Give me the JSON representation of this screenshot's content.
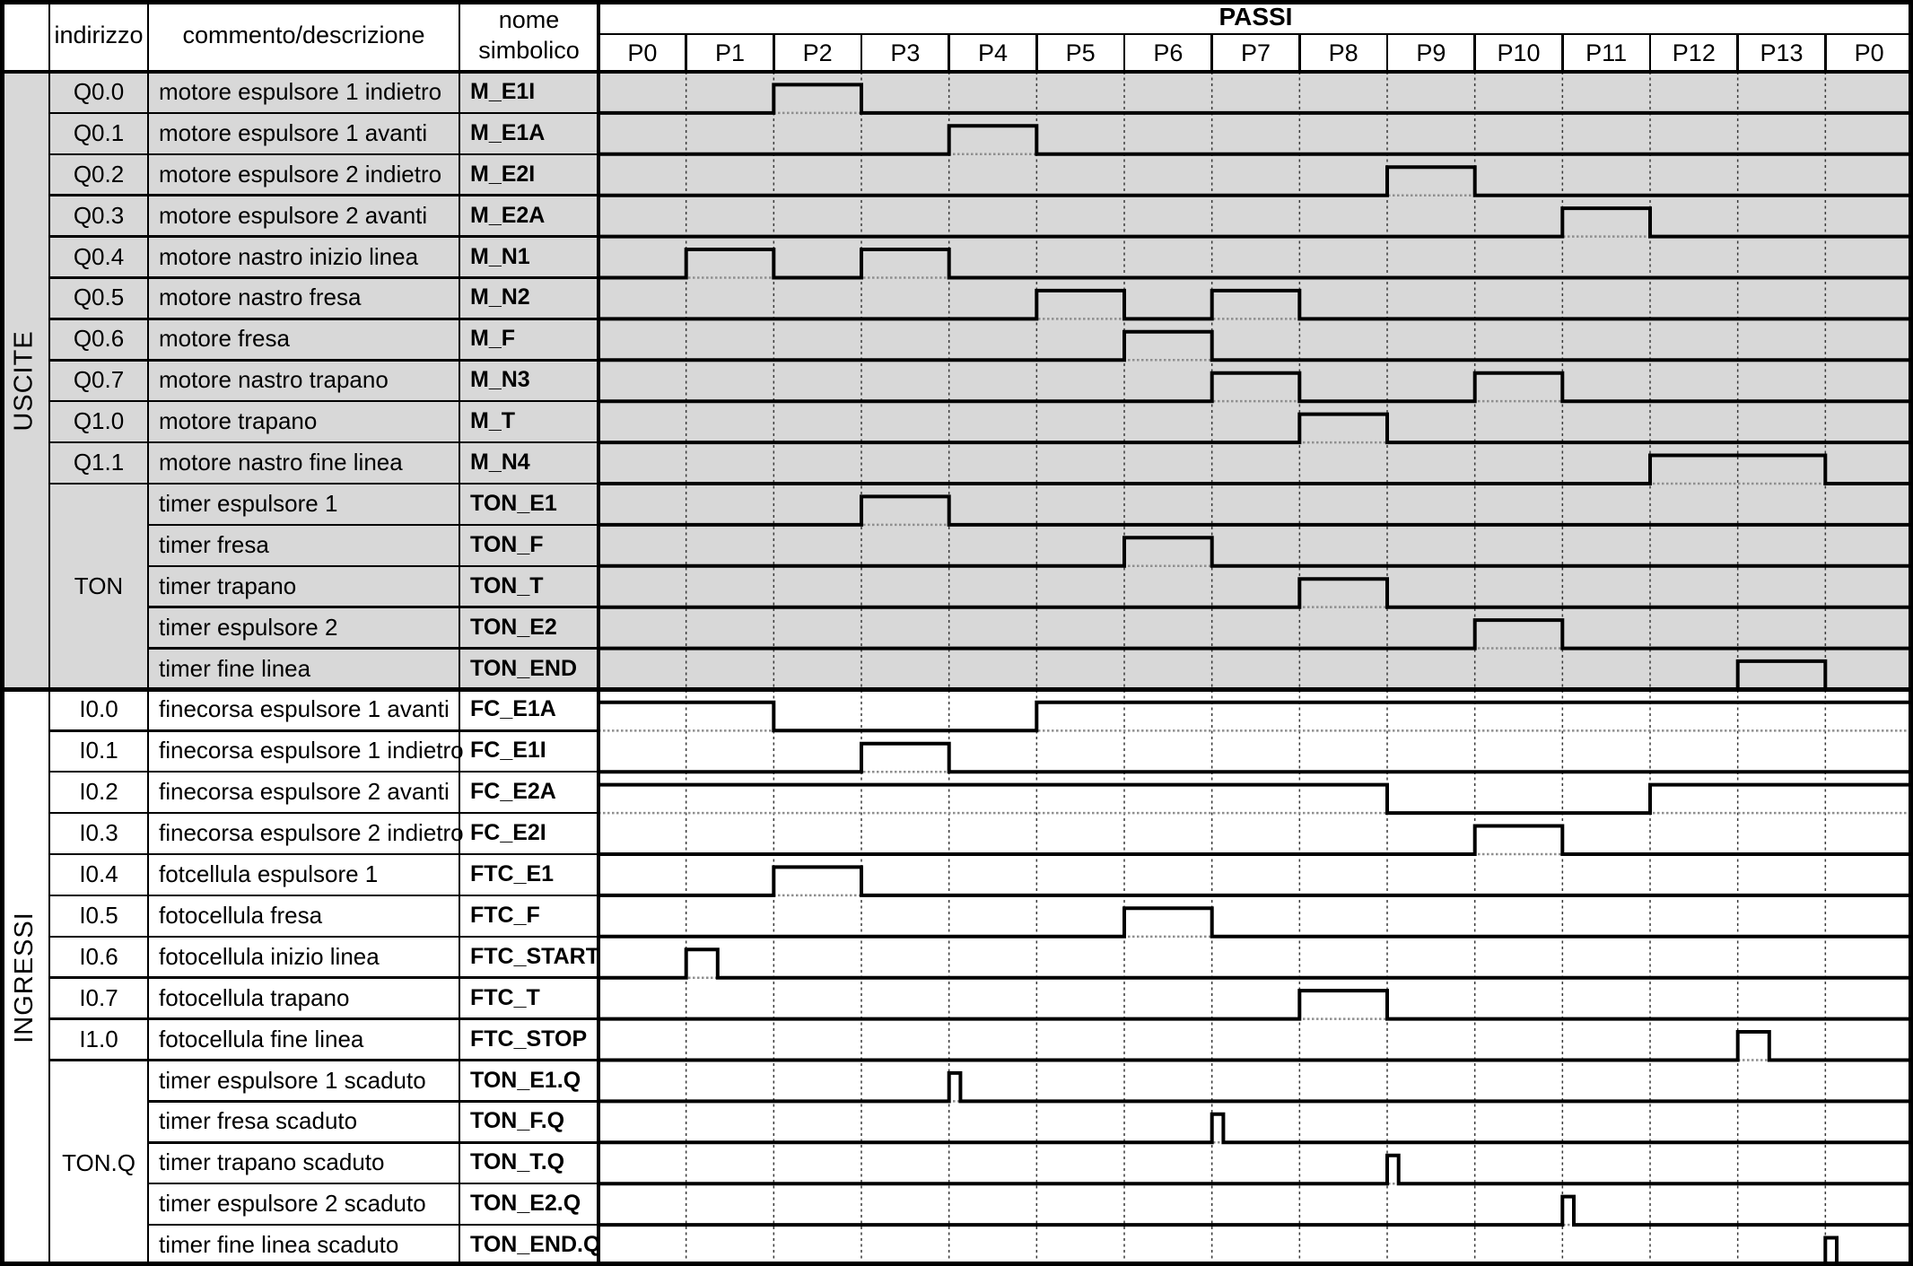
{
  "header": {
    "columns": {
      "indirizzo": "indirizzo",
      "commento": "commento/descrizione",
      "nome": "nome simbolico"
    },
    "passi_label": "PASSI",
    "steps": [
      "P0",
      "P1",
      "P2",
      "P3",
      "P4",
      "P5",
      "P6",
      "P7",
      "P8",
      "P9",
      "P10",
      "P11",
      "P12",
      "P13",
      "P0"
    ]
  },
  "colors": {
    "output_row_bg": "#d8d8d8",
    "input_row_bg": "#ffffff",
    "line": "#000000",
    "step_grid_dash": "#3a3a3a",
    "baseline_dotted": "#8f8f8f"
  },
  "sections": [
    {
      "label": "USCITE",
      "rows": [
        {
          "addr": "Q0.0",
          "comment": "motore espulsore 1 indietro",
          "symbol": "M_E1I",
          "high_steps": [
            [
              2,
              3
            ]
          ]
        },
        {
          "addr": "Q0.1",
          "comment": "motore espulsore 1 avanti",
          "symbol": "M_E1A",
          "high_steps": [
            [
              4,
              5
            ]
          ]
        },
        {
          "addr": "Q0.2",
          "comment": "motore espulsore 2 indietro",
          "symbol": "M_E2I",
          "high_steps": [
            [
              9,
              10
            ]
          ]
        },
        {
          "addr": "Q0.3",
          "comment": "motore espulsore 2 avanti",
          "symbol": "M_E2A",
          "high_steps": [
            [
              11,
              12
            ]
          ]
        },
        {
          "addr": "Q0.4",
          "comment": "motore nastro inizio linea",
          "symbol": "M_N1",
          "high_steps": [
            [
              1,
              2
            ],
            [
              3,
              4
            ]
          ]
        },
        {
          "addr": "Q0.5",
          "comment": "motore nastro fresa",
          "symbol": "M_N2",
          "high_steps": [
            [
              5,
              6
            ],
            [
              7,
              8
            ]
          ]
        },
        {
          "addr": "Q0.6",
          "comment": "motore fresa",
          "symbol": "M_F",
          "high_steps": [
            [
              6,
              7
            ]
          ]
        },
        {
          "addr": "Q0.7",
          "comment": "motore nastro trapano",
          "symbol": "M_N3",
          "high_steps": [
            [
              7,
              8
            ],
            [
              10,
              11
            ]
          ]
        },
        {
          "addr": "Q1.0",
          "comment": "motore trapano",
          "symbol": "M_T",
          "high_steps": [
            [
              8,
              9
            ]
          ]
        },
        {
          "addr": "Q1.1",
          "comment": "motore nastro fine linea",
          "symbol": "M_N4",
          "high_steps": [
            [
              12,
              14
            ]
          ]
        },
        {
          "addr": "TON",
          "addr_span": 5,
          "comment": "timer espulsore 1",
          "symbol": "TON_E1",
          "high_steps": [
            [
              3,
              4
            ]
          ]
        },
        {
          "addr": null,
          "comment": "timer fresa",
          "symbol": "TON_F",
          "high_steps": [
            [
              6,
              7
            ]
          ]
        },
        {
          "addr": null,
          "comment": "timer trapano",
          "symbol": "TON_T",
          "high_steps": [
            [
              8,
              9
            ]
          ]
        },
        {
          "addr": null,
          "comment": "timer espulsore 2",
          "symbol": "TON_E2",
          "high_steps": [
            [
              10,
              11
            ]
          ]
        },
        {
          "addr": null,
          "comment": "timer fine linea",
          "symbol": "TON_END",
          "high_steps": [
            [
              13,
              14
            ]
          ]
        }
      ]
    },
    {
      "label": "INGRESSI",
      "rows": [
        {
          "addr": "I0.0",
          "comment": "finecorsa espulsore 1 avanti",
          "symbol": "FC_E1A",
          "high_steps": [
            [
              0,
              2
            ],
            [
              5,
              15
            ]
          ]
        },
        {
          "addr": "I0.1",
          "comment": "finecorsa espulsore 1 indietro",
          "symbol": "FC_E1I",
          "high_steps": [
            [
              3,
              4
            ]
          ]
        },
        {
          "addr": "I0.2",
          "comment": "finecorsa espulsore 2 avanti",
          "symbol": "FC_E2A",
          "high_steps": [
            [
              0,
              9
            ],
            [
              12,
              15
            ]
          ]
        },
        {
          "addr": "I0.3",
          "comment": "finecorsa espulsore 2 indietro",
          "symbol": "FC_E2I",
          "high_steps": [
            [
              10,
              11
            ]
          ]
        },
        {
          "addr": "I0.4",
          "comment": "fotcellula espulsore 1",
          "symbol": "FTC_E1",
          "high_steps": [
            [
              2,
              3
            ]
          ]
        },
        {
          "addr": "I0.5",
          "comment": "fotocellula fresa",
          "symbol": "FTC_F",
          "high_steps": [
            [
              6,
              7
            ]
          ]
        },
        {
          "addr": "I0.6",
          "comment": "fotocellula inizio linea",
          "symbol": "FTC_START",
          "high_steps": [
            [
              1,
              1.36
            ]
          ]
        },
        {
          "addr": "I0.7",
          "comment": "fotocellula trapano",
          "symbol": "FTC_T",
          "high_steps": [
            [
              8,
              9
            ]
          ]
        },
        {
          "addr": "I1.0",
          "comment": "fotocellula fine linea",
          "symbol": "FTC_STOP",
          "high_steps": [
            [
              13,
              13.36
            ]
          ]
        },
        {
          "addr": "TON.Q",
          "addr_span": 5,
          "comment": "timer espulsore 1 scaduto",
          "symbol": "TON_E1.Q",
          "high_steps": [
            [
              4,
              4.13
            ]
          ]
        },
        {
          "addr": null,
          "comment": "timer fresa scaduto",
          "symbol": "TON_F.Q",
          "high_steps": [
            [
              7,
              7.13
            ]
          ]
        },
        {
          "addr": null,
          "comment": "timer trapano scaduto",
          "symbol": "TON_T.Q",
          "high_steps": [
            [
              9,
              9.13
            ]
          ]
        },
        {
          "addr": null,
          "comment": "timer espulsore 2 scaduto",
          "symbol": "TON_E2.Q",
          "high_steps": [
            [
              11,
              11.13
            ]
          ]
        },
        {
          "addr": null,
          "comment": "timer fine linea scaduto",
          "symbol": "TON_END.Q",
          "high_steps": [
            [
              14,
              14.13
            ]
          ]
        }
      ]
    }
  ]
}
